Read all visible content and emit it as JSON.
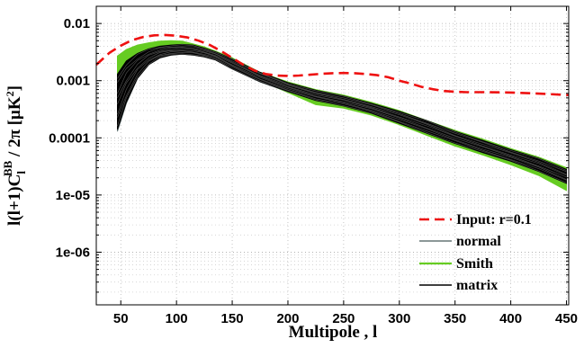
{
  "chart_data": {
    "type": "line",
    "xlabel": "Multipole ,  l",
    "ylabel_parts": {
      "main": "l(l+1)C",
      "sub": "l",
      "sup": "BB",
      "tail": " / 2π [μK",
      "tail_sup": "2",
      "end": "]"
    },
    "xlim": [
      28,
      452
    ],
    "ylim": [
      1.2e-07,
      0.02
    ],
    "yscale": "log",
    "grid": true,
    "legend_position": "bottom-right",
    "x_ticks": [
      50,
      100,
      150,
      200,
      250,
      300,
      350,
      400,
      450
    ],
    "x_tick_labels": [
      "50",
      "100",
      "150",
      "200",
      "250",
      "300",
      "350",
      "400",
      "450"
    ],
    "y_ticks": [
      1e-06,
      1e-05,
      0.0001,
      0.001,
      0.01
    ],
    "y_tick_labels": [
      "1e-06",
      "1e-05",
      "0.0001",
      "0.001",
      "0.01"
    ],
    "series": [
      {
        "name": "Input: r=0.1",
        "color": "#ee1111",
        "style": "dashed",
        "x": [
          28,
          40,
          50,
          60,
          70,
          80,
          90,
          100,
          110,
          120,
          130,
          140,
          150,
          160,
          170,
          180,
          190,
          200,
          210,
          220,
          230,
          240,
          250,
          260,
          270,
          280,
          290,
          300,
          310,
          320,
          330,
          340,
          350,
          360,
          380,
          400,
          420,
          452
        ],
        "y": [
          0.0019,
          0.0031,
          0.0041,
          0.0051,
          0.0058,
          0.0062,
          0.0063,
          0.0061,
          0.0057,
          0.005,
          0.0042,
          0.0033,
          0.0025,
          0.0019,
          0.0015,
          0.00131,
          0.00123,
          0.00121,
          0.00123,
          0.00127,
          0.00132,
          0.00135,
          0.00136,
          0.00135,
          0.00131,
          0.00125,
          0.00115,
          0.001,
          0.00089,
          0.00078,
          0.00071,
          0.00066,
          0.00064,
          0.00063,
          0.00063,
          0.00062,
          0.0006,
          0.00056
        ]
      },
      {
        "name": "normal",
        "color": "#667777",
        "style": "solid",
        "x": [
          47,
          55,
          65,
          75,
          85,
          95,
          105,
          115,
          125,
          135,
          150,
          175,
          200,
          225,
          250,
          275,
          300,
          325,
          350,
          375,
          400,
          425,
          450
        ],
        "y_low": [
          0.00013,
          0.0004,
          0.0011,
          0.0019,
          0.0025,
          0.0028,
          0.0029,
          0.0028,
          0.0026,
          0.0023,
          0.0016,
          0.00095,
          0.00064,
          0.0005,
          0.00038,
          0.00027,
          0.00018,
          0.00012,
          8e-05,
          5.5e-05,
          3.9e-05,
          2.6e-05,
          1.6e-05
        ],
        "y_high": [
          0.0012,
          0.0021,
          0.0029,
          0.0035,
          0.0039,
          0.0041,
          0.0042,
          0.0041,
          0.0036,
          0.0031,
          0.0023,
          0.0013,
          0.0009,
          0.00067,
          0.00053,
          0.00039,
          0.00028,
          0.00019,
          0.000125,
          9e-05,
          6e-05,
          4.2e-05,
          2.7e-05
        ]
      },
      {
        "name": "Smith",
        "color": "#66cc22",
        "style": "solid",
        "x": [
          47,
          55,
          65,
          75,
          85,
          95,
          105,
          115,
          125,
          135,
          150,
          175,
          200,
          225,
          250,
          275,
          300,
          325,
          350,
          375,
          400,
          425,
          450
        ],
        "y_low": [
          0.0012,
          0.0019,
          0.0025,
          0.003,
          0.0034,
          0.0036,
          0.0036,
          0.0034,
          0.003,
          0.0025,
          0.0018,
          0.001,
          0.00062,
          0.00038,
          0.00033,
          0.00025,
          0.00017,
          0.00011,
          7.2e-05,
          5e-05,
          3.4e-05,
          2.2e-05,
          1.2e-05
        ],
        "y_high": [
          0.0027,
          0.0035,
          0.0042,
          0.0046,
          0.0049,
          0.005,
          0.0049,
          0.0044,
          0.0039,
          0.0033,
          0.0025,
          0.0014,
          0.00095,
          0.0007,
          0.00056,
          0.00042,
          0.0003,
          0.0002,
          0.000135,
          9.5e-05,
          6.5e-05,
          4.6e-05,
          3e-05
        ]
      },
      {
        "name": "matrix",
        "color": "#000000",
        "style": "solid",
        "x": [
          47,
          55,
          65,
          75,
          85,
          95,
          105,
          115,
          125,
          135,
          150,
          175,
          200,
          225,
          250,
          275,
          300,
          325,
          350,
          375,
          400,
          425,
          450
        ],
        "y_low": [
          0.00014,
          0.00042,
          0.0011,
          0.0019,
          0.0025,
          0.0028,
          0.0029,
          0.0028,
          0.0026,
          0.0023,
          0.0016,
          0.00096,
          0.00065,
          0.00045,
          0.00036,
          0.00027,
          0.00018,
          0.00012,
          8e-05,
          5.5e-05,
          3.9e-05,
          2.6e-05,
          1.6e-05
        ],
        "y_high": [
          0.0013,
          0.0022,
          0.003,
          0.0036,
          0.004,
          0.0042,
          0.0043,
          0.0042,
          0.0037,
          0.0032,
          0.0024,
          0.0014,
          0.00092,
          0.00068,
          0.00054,
          0.0004,
          0.00029,
          0.0002,
          0.00013,
          9e-05,
          6.2e-05,
          4.4e-05,
          2.8e-05
        ]
      }
    ]
  }
}
